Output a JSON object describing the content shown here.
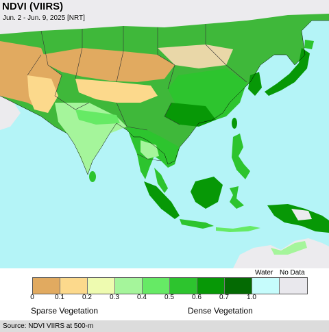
{
  "header": {
    "title": "NDVI (VIIRS)",
    "subtitle": "Jun. 2 - Jun. 9, 2025 [NRT]"
  },
  "map": {
    "region": "Asia-Pacific",
    "colors": {
      "ocean": "#b4f4f7",
      "no_data_land": "#ecebee",
      "border": "#333333"
    }
  },
  "legend": {
    "water_label": "Water",
    "nodata_label": "No Data",
    "swatches": [
      {
        "color": "#e1aa60"
      },
      {
        "color": "#fcd98c"
      },
      {
        "color": "#eefbb0"
      },
      {
        "color": "#a5f59b"
      },
      {
        "color": "#66ea65"
      },
      {
        "color": "#2dc42e"
      },
      {
        "color": "#079806"
      },
      {
        "color": "#046a03"
      },
      {
        "color": "#c6fcfc"
      },
      {
        "color": "#e9e8ed"
      }
    ],
    "ticks": [
      "0",
      "0.1",
      "0.2",
      "0.3",
      "0.4",
      "0.5",
      "0.6",
      "0.7",
      "1.0"
    ],
    "sparse_label": "Sparse Vegetation",
    "dense_label": "Dense Vegetation"
  },
  "footer": {
    "source": "Source: NDVI VIIRS at 500-m"
  }
}
